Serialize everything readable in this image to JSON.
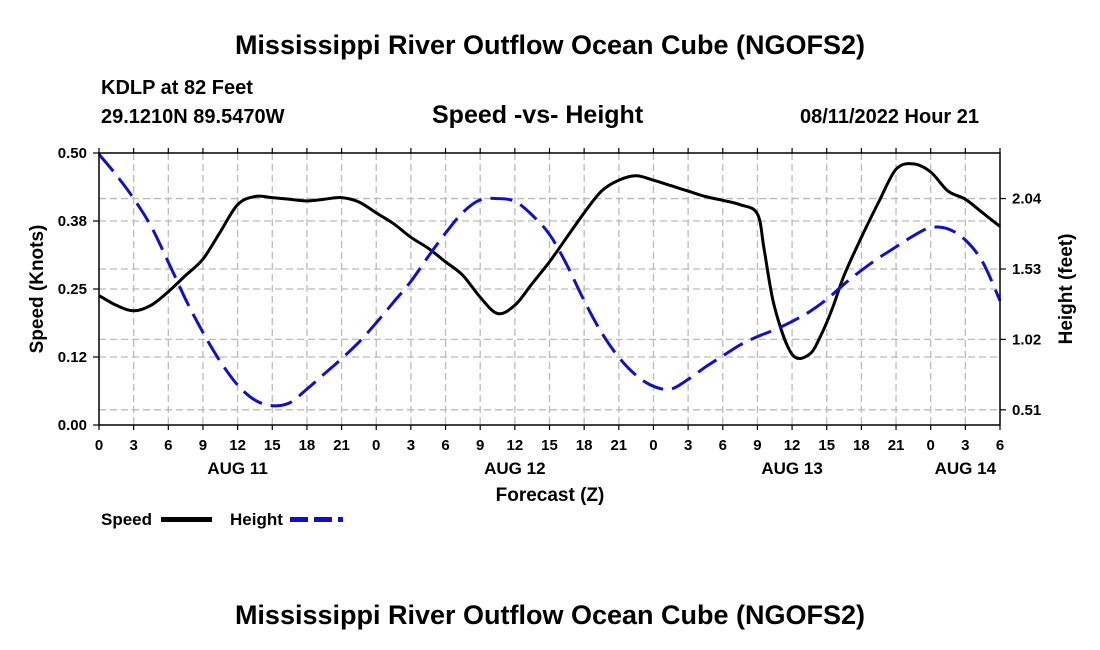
{
  "page": {
    "title": "Mississippi River Outflow Ocean Cube (NGOFS2)",
    "footer_title": "Mississippi River Outflow Ocean Cube (NGOFS2)"
  },
  "header": {
    "station": "KDLP at 82 Feet",
    "coords": "29.1210N  89.5470W",
    "subtitle": "Speed -vs- Height",
    "datetime": "08/11/2022 Hour 21"
  },
  "legend": {
    "speed_label": "Speed",
    "height_label": "Height"
  },
  "chart_data": {
    "type": "line",
    "title": "Speed -vs- Height",
    "xlabel": "Forecast (Z)",
    "ylabel": "Speed (Knots)",
    "y2label": "Height (feet)",
    "x_range": [
      0,
      78
    ],
    "ylim": [
      0,
      0.5
    ],
    "y_ticks": [
      "0.00",
      "0.12",
      "0.25",
      "0.38",
      "0.50"
    ],
    "y_tick_values": [
      0,
      0.125,
      0.25,
      0.375,
      0.5
    ],
    "y2lim": [
      0.4,
      2.37
    ],
    "y2_ticks": [
      "0.51",
      "1.02",
      "1.53",
      "2.04"
    ],
    "y2_tick_values": [
      0.51,
      1.02,
      1.53,
      2.04
    ],
    "x_tick_labels": [
      "0",
      "3",
      "6",
      "9",
      "12",
      "15",
      "18",
      "21",
      "0",
      "3",
      "6",
      "9",
      "12",
      "15",
      "18",
      "21",
      "0",
      "3",
      "6",
      "9",
      "12",
      "15",
      "18",
      "21",
      "0",
      "3",
      "6"
    ],
    "date_labels": [
      {
        "x": 12,
        "label": "AUG 11"
      },
      {
        "x": 36,
        "label": "AUG 12"
      },
      {
        "x": 60,
        "label": "AUG 13"
      },
      {
        "x": 75,
        "label": "AUG 14"
      }
    ],
    "grid": true,
    "series": [
      {
        "name": "Speed",
        "axis": "left",
        "color": "#000000",
        "style": "solid",
        "x": [
          0,
          1.5,
          3,
          4.5,
          6,
          7.5,
          9,
          10.5,
          12,
          13.5,
          15,
          16.5,
          18,
          19.5,
          21,
          22.5,
          24,
          25.5,
          27,
          28.5,
          30,
          31.5,
          33,
          34.5,
          36,
          37.5,
          39,
          40.5,
          42,
          43.5,
          45,
          46.5,
          48,
          49.5,
          51,
          52.5,
          54,
          55.5,
          57,
          57.6,
          58.5,
          60,
          61.5,
          62.5,
          63.5,
          64.5,
          66,
          67.5,
          69,
          70.5,
          72,
          73.5,
          75,
          76.5,
          78
        ],
        "values": [
          0.238,
          0.22,
          0.21,
          0.22,
          0.245,
          0.275,
          0.305,
          0.355,
          0.405,
          0.42,
          0.418,
          0.415,
          0.412,
          0.415,
          0.418,
          0.41,
          0.39,
          0.37,
          0.345,
          0.325,
          0.3,
          0.275,
          0.235,
          0.205,
          0.22,
          0.26,
          0.3,
          0.345,
          0.39,
          0.43,
          0.45,
          0.458,
          0.45,
          0.44,
          0.43,
          0.42,
          0.413,
          0.405,
          0.388,
          0.32,
          0.215,
          0.13,
          0.13,
          0.165,
          0.215,
          0.275,
          0.345,
          0.41,
          0.47,
          0.48,
          0.465,
          0.43,
          0.415,
          0.39,
          0.365
        ]
      },
      {
        "name": "Height",
        "axis": "right",
        "color": "#1010cc",
        "style": "dashed",
        "x": [
          0,
          1.5,
          3,
          4.5,
          6,
          7.5,
          9,
          10.5,
          12,
          13.5,
          15,
          16.5,
          18,
          19.5,
          21,
          22.5,
          24,
          25.5,
          27,
          28.5,
          30,
          31.5,
          33,
          34.5,
          36,
          37.5,
          39,
          40.5,
          42,
          43.5,
          45,
          46.5,
          48,
          49.5,
          51,
          52.5,
          54,
          55.5,
          57,
          58.5,
          60,
          61.5,
          63,
          64.5,
          66,
          67.5,
          69,
          70.5,
          72,
          73.5,
          75,
          76.5,
          78
        ],
        "values": [
          2.36,
          2.21,
          2.04,
          1.84,
          1.58,
          1.31,
          1.07,
          0.86,
          0.69,
          0.58,
          0.54,
          0.56,
          0.66,
          0.77,
          0.88,
          1.0,
          1.14,
          1.29,
          1.44,
          1.62,
          1.79,
          1.94,
          2.03,
          2.04,
          2.02,
          1.92,
          1.78,
          1.56,
          1.3,
          1.07,
          0.89,
          0.76,
          0.68,
          0.66,
          0.73,
          0.82,
          0.9,
          0.98,
          1.04,
          1.09,
          1.15,
          1.22,
          1.31,
          1.42,
          1.52,
          1.61,
          1.69,
          1.77,
          1.83,
          1.82,
          1.74,
          1.58,
          1.3
        ]
      }
    ]
  }
}
